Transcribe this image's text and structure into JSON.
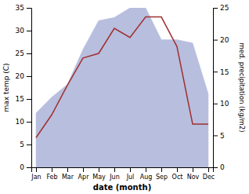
{
  "chart_data": {
    "type": "line",
    "categories": [
      "Jan",
      "Feb",
      "Mar",
      "Apr",
      "May",
      "Jun",
      "Jul",
      "Aug",
      "Sep",
      "Oct",
      "Nov",
      "Dec"
    ],
    "series": [
      {
        "type": "area",
        "axis": "y2",
        "color": "#b8bede",
        "values": [
          8.5,
          11.0,
          13.0,
          18.5,
          23.0,
          23.5,
          25.0,
          25.0,
          20.0,
          20.0,
          19.5,
          11.5
        ]
      },
      {
        "type": "line",
        "color": "#a03030",
        "values": [
          6.5,
          11.5,
          18.0,
          24.0,
          25.0,
          30.5,
          28.5,
          33.0,
          33.0,
          26.5,
          9.5,
          9.5
        ]
      }
    ],
    "xlabel": "date (month)",
    "ylabel": "max temp (C)",
    "y2label": "med. precipitation (kg/m2)",
    "ylim": [
      0,
      35
    ],
    "yticks": [
      0,
      5,
      10,
      15,
      20,
      25,
      30,
      35
    ],
    "y2lim": [
      0,
      25
    ],
    "y2ticks": [
      0,
      5,
      10,
      15,
      20,
      25
    ]
  }
}
